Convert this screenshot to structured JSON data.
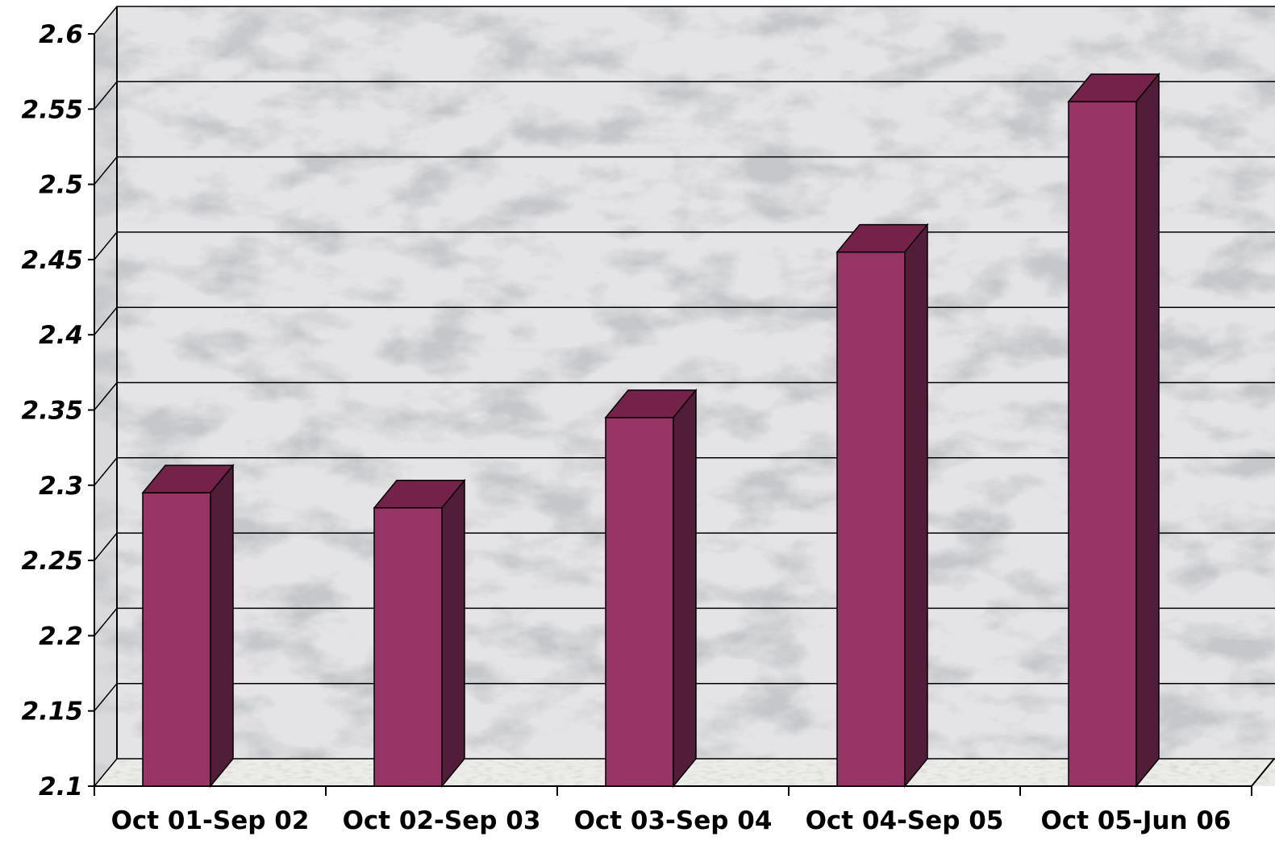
{
  "chart_data": {
    "type": "bar",
    "categories": [
      "Oct 01-Sep 02",
      "Oct 02-Sep 03",
      "Oct 03-Sep 04",
      "Oct 04-Sep 05",
      "Oct 05-Jun 06"
    ],
    "values": [
      2.295,
      2.285,
      2.345,
      2.455,
      2.555
    ],
    "yticks": [
      "2.6",
      "2.55",
      "2.5",
      "2.45",
      "2.4",
      "2.35",
      "2.3",
      "2.25",
      "2.2",
      "2.15",
      "2.1"
    ],
    "ylim": [
      2.1,
      2.6
    ],
    "grid": true,
    "legend": false,
    "style": "3d",
    "colors": {
      "bar_front": "#983366",
      "bar_top": "#74224a",
      "bar_side": "#521d39",
      "gridline": "#000000",
      "wall": "#e4e4e6",
      "marble_vein": "#8f9296"
    }
  }
}
